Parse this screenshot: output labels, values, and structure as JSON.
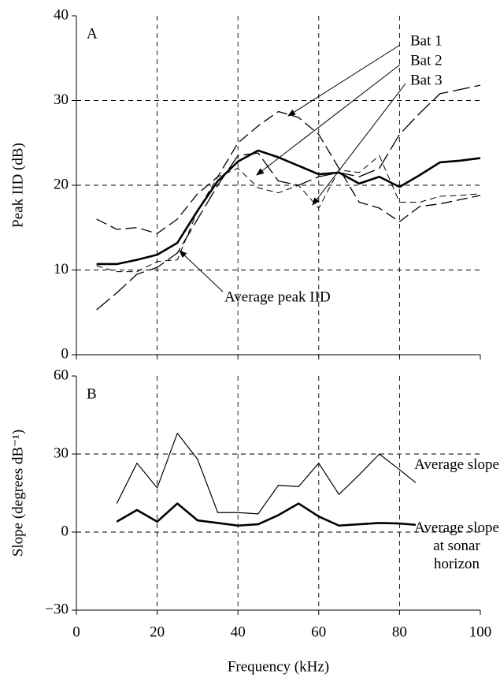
{
  "chart_data": [
    {
      "type": "line",
      "panel_label": "A",
      "ylabel": "Peak IID (dB)",
      "x": [
        5,
        10,
        15,
        20,
        25,
        30,
        35,
        40,
        45,
        50,
        55,
        60,
        65,
        70,
        75,
        80,
        85,
        90,
        95,
        100
      ],
      "xlim": [
        0,
        100
      ],
      "xticks": [
        0,
        20,
        40,
        60,
        80,
        100
      ],
      "show_xtick_labels": false,
      "ylim": [
        0,
        40
      ],
      "yticks": [
        0,
        10,
        20,
        30,
        40
      ],
      "grid": true,
      "series": [
        {
          "name": "Bat 1",
          "color": "#000000",
          "style": "dashed",
          "values": [
            16,
            14.8,
            15,
            14.3,
            16,
            19,
            21,
            25,
            27,
            28.7,
            28,
            26,
            22,
            18,
            17.3,
            15.7,
            17.5,
            17.8,
            18.3,
            18.8
          ]
        },
        {
          "name": "Bat 2",
          "color": "#000000",
          "style": "long-dashed",
          "values": [
            5.3,
            7.3,
            9.5,
            10.3,
            12,
            16,
            20,
            23.5,
            23.8,
            20.5,
            20,
            21,
            21.5,
            21,
            22,
            26,
            28.5,
            30.8,
            31.3,
            31.8
          ]
        },
        {
          "name": "Bat 3",
          "color": "#000000",
          "style": "short-dashed",
          "values": [
            10.5,
            9.8,
            9.8,
            11,
            11.2,
            17,
            21,
            22,
            19.7,
            19.1,
            20,
            17.3,
            21.8,
            21.5,
            23.5,
            18,
            18,
            18.7,
            18.8,
            19
          ]
        },
        {
          "name": "Average peak IID",
          "color": "#000000",
          "style": "bold",
          "values": [
            10.7,
            10.7,
            11.2,
            11.8,
            13.2,
            17,
            20.5,
            22.8,
            24.1,
            23.3,
            22.3,
            21.3,
            21.5,
            20.2,
            21,
            19.8,
            21.2,
            22.7,
            22.9,
            23.2
          ]
        }
      ]
    },
    {
      "type": "line",
      "panel_label": "B",
      "ylabel": "Slope (degrees dB⁻¹)",
      "xlabel": "Frequency (kHz)",
      "x": [
        10,
        15,
        20,
        25,
        30,
        35,
        40,
        45,
        50,
        55,
        60,
        65,
        70,
        75,
        80,
        84
      ],
      "xlim": [
        0,
        100
      ],
      "xticks": [
        0,
        20,
        40,
        60,
        80,
        100
      ],
      "show_xtick_labels": true,
      "ylim": [
        -30,
        60
      ],
      "yticks": [
        {
          "value": -30,
          "label": "−30"
        },
        0,
        30,
        60
      ],
      "grid": true,
      "series": [
        {
          "name": "Average slope",
          "color": "#000000",
          "style": "thin",
          "values": [
            11,
            26.5,
            17,
            38,
            28,
            7.5,
            7.5,
            7,
            18,
            17.5,
            26.5,
            14.5,
            22,
            30,
            24,
            19
          ]
        },
        {
          "name": "Average slope at sonar horizon",
          "color": "#000000",
          "style": "bold",
          "values": [
            4,
            8.5,
            4,
            11,
            4.5,
            3.5,
            2.5,
            3,
            6.5,
            11,
            6,
            2.5,
            3,
            3.5,
            3.3,
            2.8
          ]
        }
      ]
    }
  ]
}
